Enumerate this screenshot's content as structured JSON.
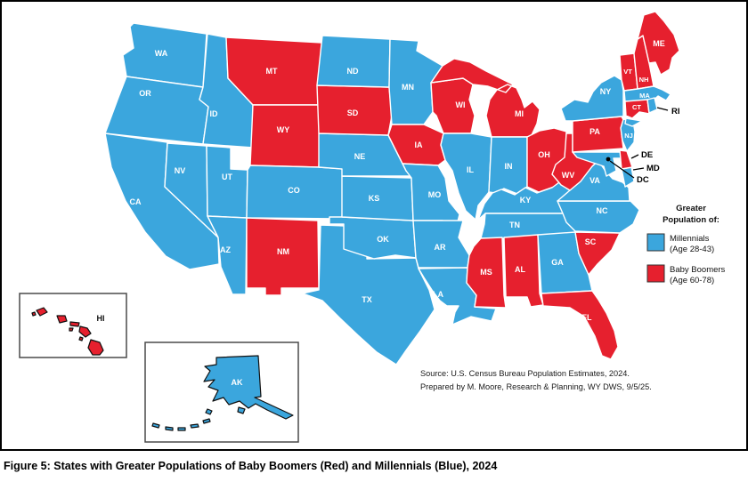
{
  "figure_caption": "Figure 5: States with Greater Populations of Baby Boomers (Red) and Millennials (Blue), 2024",
  "colors": {
    "millennials": "#3BA6DD",
    "boomers": "#E6202E"
  },
  "legend": {
    "title_line1": "Greater",
    "title_line2": "Population of:",
    "entries": [
      {
        "group": "millennials",
        "label": "Millennials",
        "sub": "(Age 28-43)"
      },
      {
        "group": "boomers",
        "label": "Baby Boomers",
        "sub": "(Age 60-78)"
      }
    ]
  },
  "source": {
    "line1": "Source: U.S. Census Bureau Population Estimates, 2024.",
    "line2": "Prepared by M. Moore, Research & Planning, WY DWS, 9/5/25."
  },
  "callouts": {
    "ri": "RI",
    "de": "DE",
    "md": "MD",
    "dc": "DC"
  },
  "states": [
    {
      "id": "WA",
      "label": "WA",
      "group": "millennials"
    },
    {
      "id": "OR",
      "label": "OR",
      "group": "millennials"
    },
    {
      "id": "CA",
      "label": "CA",
      "group": "millennials"
    },
    {
      "id": "ID",
      "label": "ID",
      "group": "millennials"
    },
    {
      "id": "NV",
      "label": "NV",
      "group": "millennials"
    },
    {
      "id": "UT",
      "label": "UT",
      "group": "millennials"
    },
    {
      "id": "AZ",
      "label": "AZ",
      "group": "millennials"
    },
    {
      "id": "MT",
      "label": "MT",
      "group": "boomers"
    },
    {
      "id": "WY",
      "label": "WY",
      "group": "boomers"
    },
    {
      "id": "CO",
      "label": "CO",
      "group": "millennials"
    },
    {
      "id": "NM",
      "label": "NM",
      "group": "boomers"
    },
    {
      "id": "TX",
      "label": "TX",
      "group": "millennials"
    },
    {
      "id": "OK",
      "label": "OK",
      "group": "millennials"
    },
    {
      "id": "KS",
      "label": "KS",
      "group": "millennials"
    },
    {
      "id": "NE",
      "label": "NE",
      "group": "millennials"
    },
    {
      "id": "SD",
      "label": "SD",
      "group": "boomers"
    },
    {
      "id": "ND",
      "label": "ND",
      "group": "millennials"
    },
    {
      "id": "MN",
      "label": "MN",
      "group": "millennials"
    },
    {
      "id": "IA",
      "label": "IA",
      "group": "boomers"
    },
    {
      "id": "MO",
      "label": "MO",
      "group": "millennials"
    },
    {
      "id": "AR",
      "label": "AR",
      "group": "millennials"
    },
    {
      "id": "LA",
      "label": "LA",
      "group": "millennials"
    },
    {
      "id": "WI",
      "label": "WI",
      "group": "boomers"
    },
    {
      "id": "IL",
      "label": "IL",
      "group": "millennials"
    },
    {
      "id": "MI",
      "label": "MI",
      "group": "boomers"
    },
    {
      "id": "IN",
      "label": "IN",
      "group": "millennials"
    },
    {
      "id": "OH",
      "label": "OH",
      "group": "boomers"
    },
    {
      "id": "KY",
      "label": "KY",
      "group": "millennials"
    },
    {
      "id": "TN",
      "label": "TN",
      "group": "millennials"
    },
    {
      "id": "MS",
      "label": "MS",
      "group": "boomers"
    },
    {
      "id": "AL",
      "label": "AL",
      "group": "boomers"
    },
    {
      "id": "GA",
      "label": "GA",
      "group": "millennials"
    },
    {
      "id": "FL",
      "label": "FL",
      "group": "boomers"
    },
    {
      "id": "SC",
      "label": "SC",
      "group": "boomers"
    },
    {
      "id": "NC",
      "label": "NC",
      "group": "millennials"
    },
    {
      "id": "VA",
      "label": "VA",
      "group": "millennials"
    },
    {
      "id": "WV",
      "label": "WV",
      "group": "boomers"
    },
    {
      "id": "MD",
      "label": "MD",
      "group": "millennials"
    },
    {
      "id": "DE",
      "label": "DE",
      "group": "boomers"
    },
    {
      "id": "PA",
      "label": "PA",
      "group": "boomers"
    },
    {
      "id": "NJ",
      "label": "NJ",
      "group": "millennials"
    },
    {
      "id": "NY",
      "label": "NY",
      "group": "millennials"
    },
    {
      "id": "VT",
      "label": "VT",
      "group": "boomers"
    },
    {
      "id": "NH",
      "label": "NH",
      "group": "boomers"
    },
    {
      "id": "ME",
      "label": "ME",
      "group": "boomers"
    },
    {
      "id": "MA",
      "label": "MA",
      "group": "millennials"
    },
    {
      "id": "CT",
      "label": "CT",
      "group": "boomers"
    },
    {
      "id": "RI",
      "label": "RI",
      "group": "millennials"
    },
    {
      "id": "DC",
      "label": "DC",
      "group": "millennials"
    },
    {
      "id": "AK",
      "label": "AK",
      "group": "millennials"
    },
    {
      "id": "HI",
      "label": "HI",
      "group": "boomers"
    }
  ]
}
